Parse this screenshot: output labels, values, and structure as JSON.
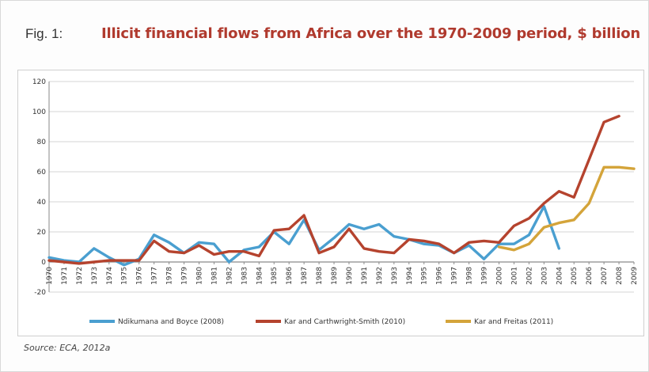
{
  "header": {
    "fig_label": "Fig. 1:",
    "title": "Illicit financial flows from Africa over the 1970-2009 period, $ billion"
  },
  "source": "Source: ECA, 2012a",
  "chart_data": {
    "type": "line",
    "title": "Illicit financial flows from Africa over the 1970-2009 period, $ billion",
    "xlabel": "",
    "ylabel": "",
    "ylim": [
      -20,
      120
    ],
    "yticks": [
      -20,
      0,
      20,
      40,
      60,
      80,
      100,
      120
    ],
    "grid": true,
    "legend_position": "bottom",
    "x": [
      "1970",
      "1971",
      "1972",
      "1973",
      "1974",
      "1975",
      "1976",
      "1977",
      "1978",
      "1979",
      "1980",
      "1981",
      "1982",
      "1983",
      "1984",
      "1985",
      "1986",
      "1987",
      "1988",
      "1989",
      "1990",
      "1991",
      "1992",
      "1993",
      "1994",
      "1995",
      "1996",
      "1997",
      "1998",
      "1999",
      "2000",
      "2001",
      "2002",
      "2003",
      "2004",
      "2005",
      "2006",
      "2007",
      "2008",
      "2009"
    ],
    "series": [
      {
        "name": "Ndikumana and Boyce (2008)",
        "color": "#4a9fd0",
        "values": [
          3,
          1,
          0,
          9,
          3,
          -2,
          2,
          18,
          13,
          6,
          13,
          12,
          0,
          8,
          10,
          20,
          12,
          28,
          8,
          16,
          25,
          22,
          25,
          17,
          15,
          12,
          11,
          6,
          11,
          2,
          12,
          12,
          18,
          37,
          9,
          null,
          null,
          null,
          null,
          null
        ]
      },
      {
        "name": "Kar and Carthwright-Smith (2010)",
        "color": "#b5432e",
        "values": [
          1,
          0,
          -1,
          0,
          1,
          1,
          1,
          14,
          7,
          6,
          11,
          5,
          7,
          7,
          4,
          21,
          22,
          31,
          6,
          10,
          22,
          9,
          7,
          6,
          15,
          14,
          12,
          6,
          13,
          14,
          13,
          24,
          29,
          39,
          47,
          43,
          68,
          93,
          97,
          null
        ]
      },
      {
        "name": "Kar and Freitas (2011)",
        "color": "#d4a43a",
        "values": [
          null,
          null,
          null,
          null,
          null,
          null,
          null,
          null,
          null,
          null,
          null,
          null,
          null,
          null,
          null,
          null,
          null,
          null,
          null,
          null,
          null,
          null,
          null,
          null,
          null,
          null,
          null,
          null,
          null,
          null,
          10,
          8,
          12,
          23,
          26,
          28,
          39,
          63,
          63,
          62
        ]
      }
    ]
  }
}
